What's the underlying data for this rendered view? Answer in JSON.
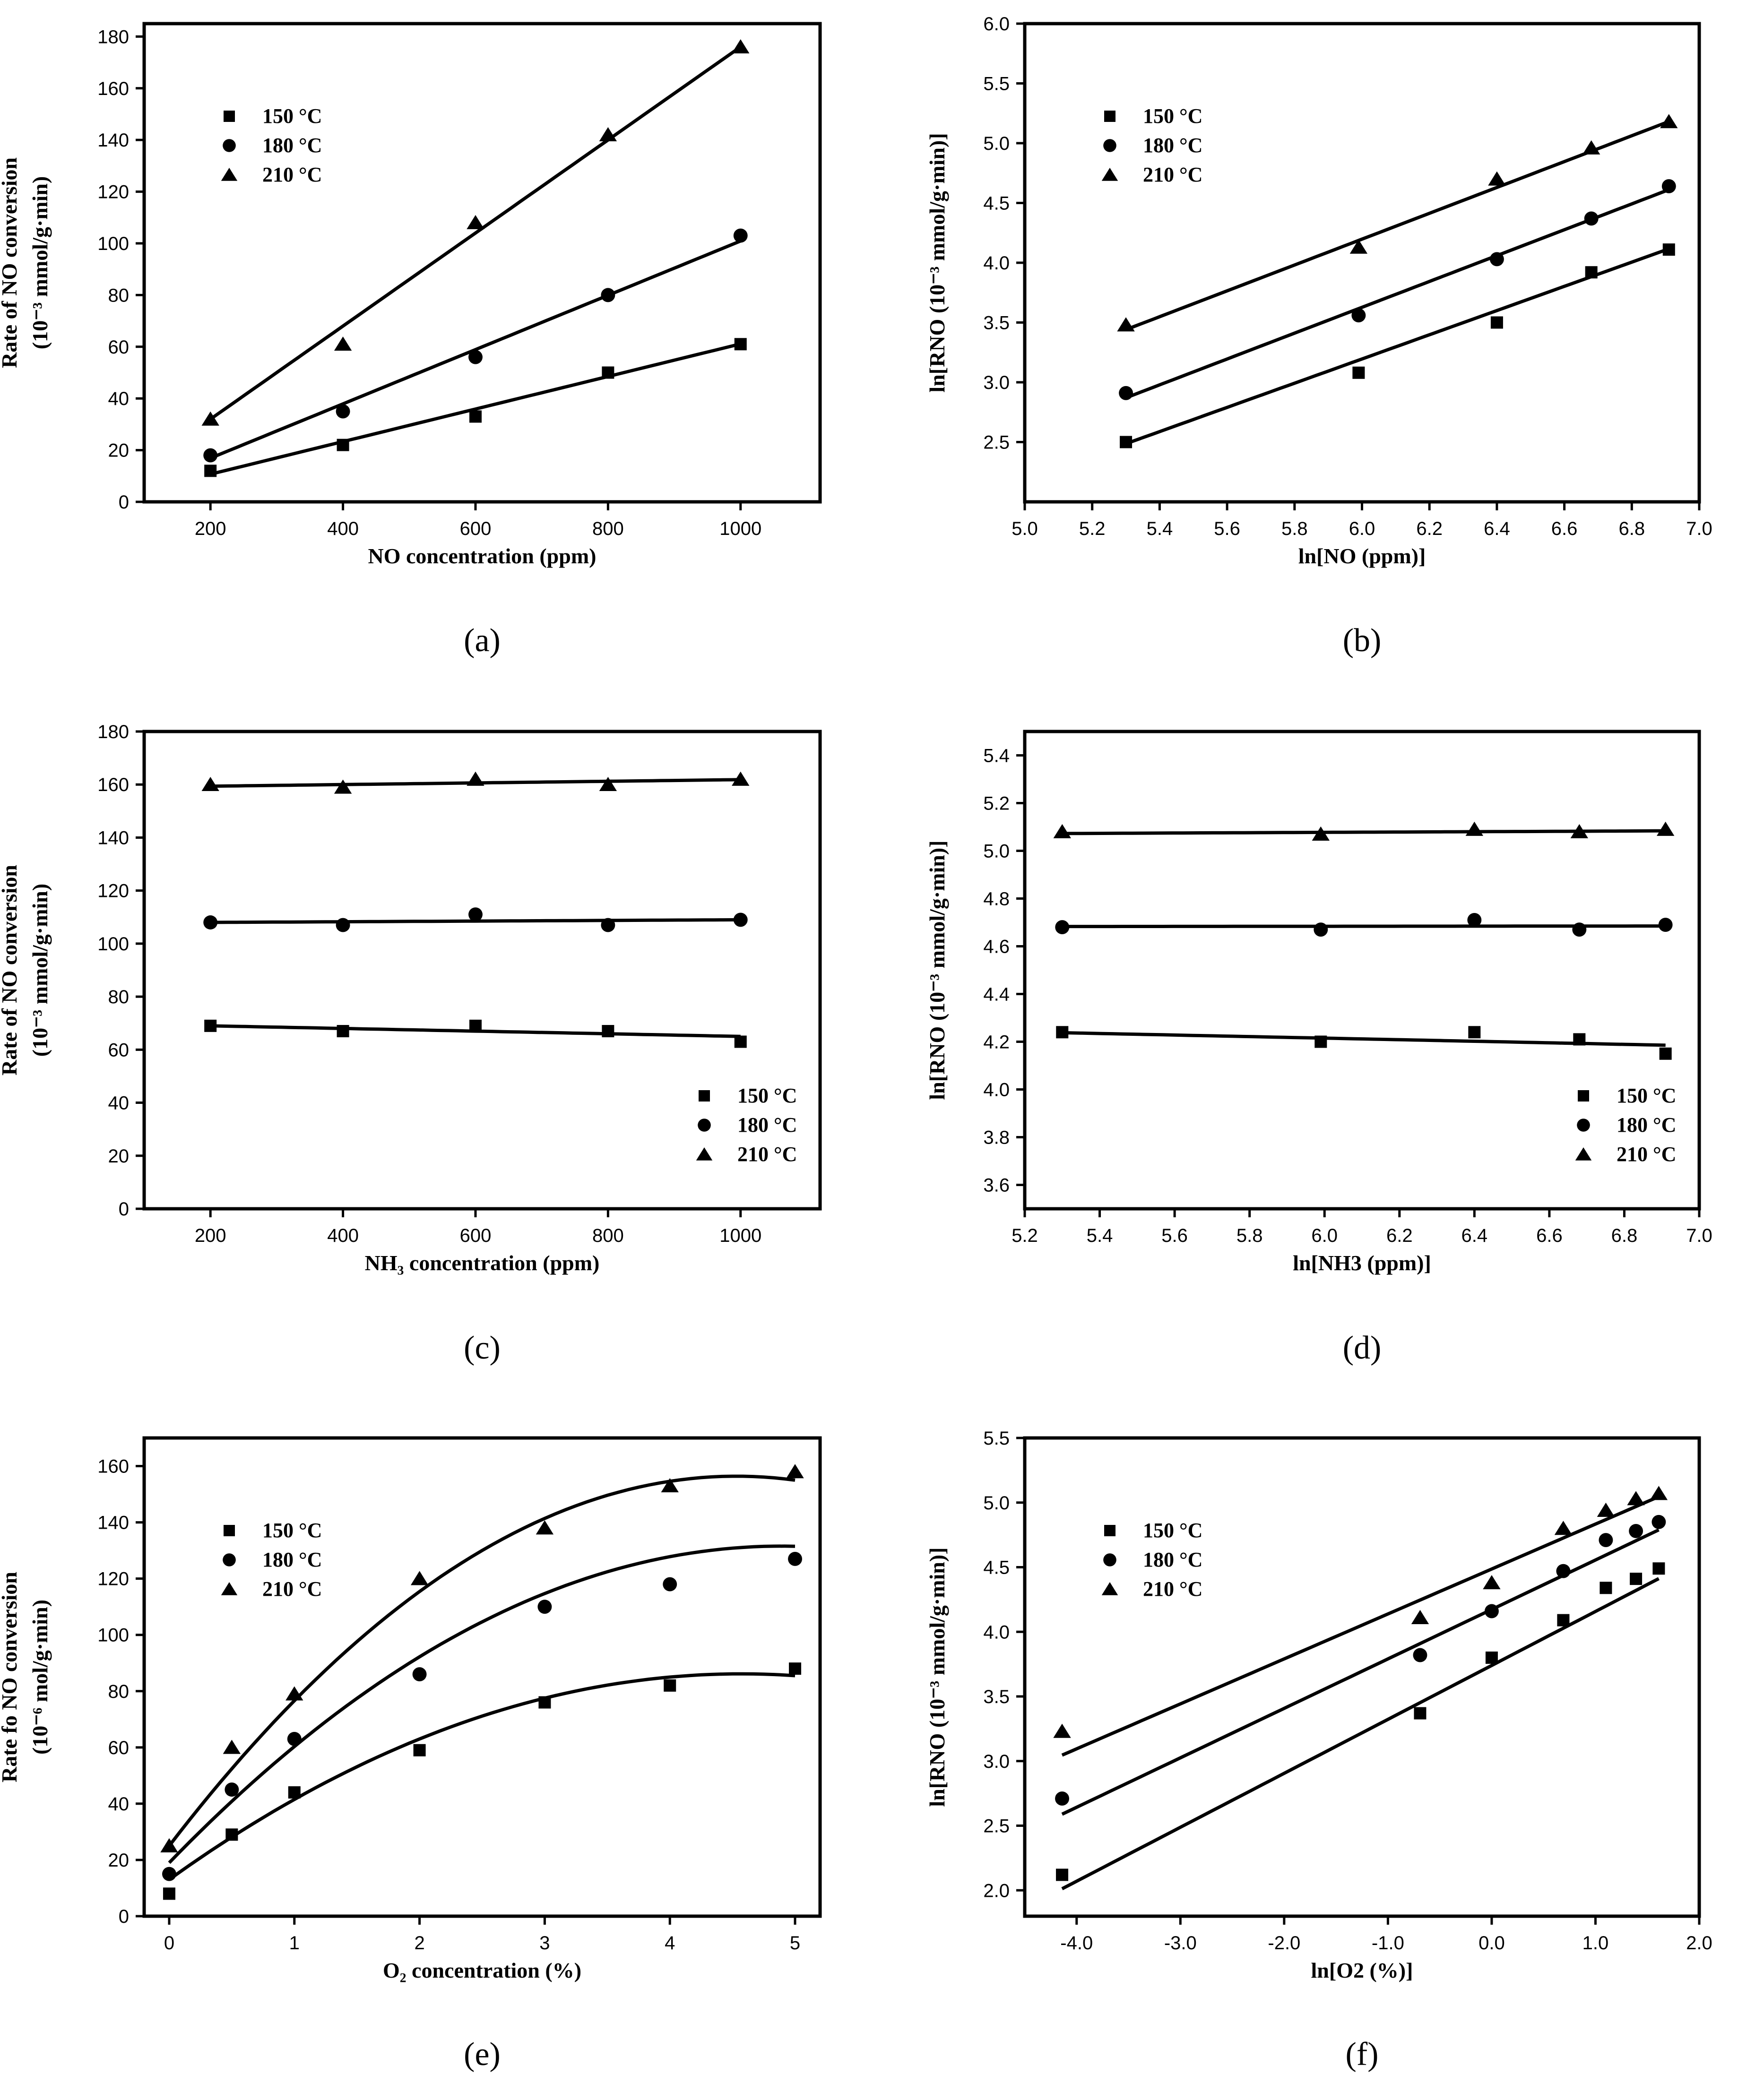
{
  "chart_data": [
    {
      "id": "a",
      "type": "scatter",
      "panel_label": "(a)",
      "xlabel": "NO concentration (ppm)",
      "ylabel_line1": "Rate of NO conversion",
      "ylabel_line2": "(10⁻³ mmol/g·min)",
      "xlim": [
        100,
        1120
      ],
      "ylim": [
        0,
        185
      ],
      "xticks": [
        200,
        400,
        600,
        800,
        1000
      ],
      "yticks": [
        0,
        20,
        40,
        60,
        80,
        100,
        120,
        140,
        160,
        180
      ],
      "tick_decimals": 0,
      "legend_position": "top-left",
      "series": [
        {
          "name": "150 °C",
          "marker": "square",
          "x": [
            200,
            400,
            600,
            800,
            1000
          ],
          "y": [
            12,
            22,
            33,
            50,
            61
          ],
          "fit": {
            "kind": "poly",
            "coef": [
              -1.9,
              0.063
            ],
            "x_range": [
              200,
              1000
            ]
          }
        },
        {
          "name": "180 °C",
          "marker": "circle",
          "x": [
            200,
            400,
            600,
            800,
            1000
          ],
          "y": [
            18,
            35,
            56,
            80,
            103
          ],
          "fit": {
            "kind": "poly",
            "coef": [
              -4.1,
              0.105
            ],
            "x_range": [
              200,
              1000
            ]
          }
        },
        {
          "name": "210 °C",
          "marker": "triangle",
          "x": [
            200,
            400,
            600,
            800,
            1000
          ],
          "y": [
            32,
            61,
            108,
            142,
            176
          ],
          "fit": {
            "kind": "poly",
            "coef": [
              -4.0,
              0.18
            ],
            "x_range": [
              200,
              1000
            ]
          }
        }
      ]
    },
    {
      "id": "b",
      "type": "scatter",
      "panel_label": "(b)",
      "xlabel": "ln[NO (ppm)]",
      "ylabel_line1": "ln[RNO (10⁻³ mmol/g·min)]",
      "ylabel_line2": "",
      "xlim": [
        5.0,
        7.0
      ],
      "ylim": [
        2.0,
        6.0
      ],
      "xticks": [
        5.0,
        5.2,
        5.4,
        5.6,
        5.8,
        6.0,
        6.2,
        6.4,
        6.6,
        6.8,
        7.0
      ],
      "yticks": [
        2.5,
        3.0,
        3.5,
        4.0,
        4.5,
        5.0,
        5.5,
        6.0
      ],
      "tick_decimals": 1,
      "legend_position": "top-left",
      "series": [
        {
          "name": "150 °C",
          "marker": "square",
          "x": [
            5.3,
            5.99,
            6.4,
            6.68,
            6.91
          ],
          "y": [
            2.5,
            3.08,
            3.5,
            3.92,
            4.11
          ],
          "fit": {
            "kind": "poly",
            "coef": [
              -2.88,
              1.0125
            ],
            "x_range": [
              5.3,
              6.91
            ]
          }
        },
        {
          "name": "180 °C",
          "marker": "circle",
          "x": [
            5.3,
            5.99,
            6.4,
            6.68,
            6.91
          ],
          "y": [
            2.91,
            3.56,
            4.03,
            4.37,
            4.64
          ],
          "fit": {
            "kind": "poly",
            "coef": [
              -2.86,
              1.0812
            ],
            "x_range": [
              5.3,
              6.91
            ]
          }
        },
        {
          "name": "210 °C",
          "marker": "triangle",
          "x": [
            5.3,
            5.99,
            6.4,
            6.68,
            6.91
          ],
          "y": [
            3.48,
            4.13,
            4.7,
            4.96,
            5.18
          ],
          "fit": {
            "kind": "poly",
            "coef": [
              -2.29,
              1.0812
            ],
            "x_range": [
              5.3,
              6.91
            ]
          }
        }
      ]
    },
    {
      "id": "c",
      "type": "scatter",
      "panel_label": "(c)",
      "xlabel": "NH₃ concentration (ppm)",
      "ylabel_line1": "Rate of NO conversion",
      "ylabel_line2": "(10⁻³ mmol/g·min)",
      "xlim": [
        100,
        1120
      ],
      "ylim": [
        0,
        180
      ],
      "xticks": [
        200,
        400,
        600,
        800,
        1000
      ],
      "yticks": [
        0,
        20,
        40,
        60,
        80,
        100,
        120,
        140,
        160,
        180
      ],
      "tick_decimals": 0,
      "legend_position": "bottom-right",
      "series": [
        {
          "name": "150 °C",
          "marker": "square",
          "x": [
            200,
            400,
            600,
            800,
            1000
          ],
          "y": [
            69,
            67,
            69,
            67,
            63
          ],
          "fit": {
            "kind": "poly",
            "coef": [
              70.0,
              -0.005
            ],
            "x_range": [
              200,
              1000
            ]
          }
        },
        {
          "name": "180 °C",
          "marker": "circle",
          "x": [
            200,
            400,
            600,
            800,
            1000
          ],
          "y": [
            108,
            107,
            111,
            107,
            109
          ],
          "fit": {
            "kind": "poly",
            "coef": [
              107.75,
              0.00125
            ],
            "x_range": [
              200,
              1000
            ]
          }
        },
        {
          "name": "210 °C",
          "marker": "triangle",
          "x": [
            200,
            400,
            600,
            800,
            1000
          ],
          "y": [
            160,
            159,
            162,
            160,
            162
          ],
          "fit": {
            "kind": "poly",
            "coef": [
              158.75,
              0.0031
            ],
            "x_range": [
              200,
              1000
            ]
          }
        }
      ]
    },
    {
      "id": "d",
      "type": "scatter",
      "panel_label": "(d)",
      "xlabel": "ln[NH3 (ppm)]",
      "ylabel_line1": "ln[RNO (10⁻³ mmol/g·min)]",
      "ylabel_line2": "",
      "xlim": [
        5.2,
        7.0
      ],
      "ylim": [
        3.5,
        5.5
      ],
      "xticks": [
        5.2,
        5.4,
        5.6,
        5.8,
        6.0,
        6.2,
        6.4,
        6.6,
        6.8,
        7.0
      ],
      "yticks": [
        3.6,
        3.8,
        4.0,
        4.2,
        4.4,
        4.6,
        4.8,
        5.0,
        5.2,
        5.4
      ],
      "tick_decimals": 1,
      "legend_position": "bottom-right",
      "series": [
        {
          "name": "150 °C",
          "marker": "square",
          "x": [
            5.3,
            5.99,
            6.4,
            6.68,
            6.91
          ],
          "y": [
            4.24,
            4.2,
            4.24,
            4.21,
            4.15
          ],
          "fit": {
            "kind": "poly",
            "coef": [
              4.41,
              -0.0325
            ],
            "x_range": [
              5.3,
              6.91
            ]
          }
        },
        {
          "name": "180 °C",
          "marker": "circle",
          "x": [
            5.3,
            5.99,
            6.4,
            6.68,
            6.91
          ],
          "y": [
            4.68,
            4.67,
            4.71,
            4.67,
            4.69
          ],
          "fit": {
            "kind": "poly",
            "coef": [
              4.676,
              0.0013
            ],
            "x_range": [
              5.3,
              6.91
            ]
          }
        },
        {
          "name": "210 °C",
          "marker": "triangle",
          "x": [
            5.3,
            5.99,
            6.4,
            6.68,
            6.91
          ],
          "y": [
            5.08,
            5.07,
            5.09,
            5.08,
            5.09
          ],
          "fit": {
            "kind": "poly",
            "coef": [
              5.036,
              0.0069
            ],
            "x_range": [
              5.3,
              6.91
            ]
          }
        }
      ]
    },
    {
      "id": "e",
      "type": "scatter",
      "panel_label": "(e)",
      "xlabel": "O₂ concentration (%)",
      "ylabel_line1": "Rate fo NO conversion",
      "ylabel_line2": "(10⁻⁶ mol/g·min)",
      "xlim": [
        -0.2,
        5.2
      ],
      "ylim": [
        0,
        170
      ],
      "xticks": [
        0,
        1,
        2,
        3,
        4,
        5
      ],
      "yticks": [
        0,
        20,
        40,
        60,
        80,
        100,
        120,
        140,
        160
      ],
      "tick_decimals": 0,
      "legend_position": "top-left",
      "series": [
        {
          "name": "150 °C",
          "marker": "square",
          "x": [
            0,
            0.5,
            1,
            2,
            3,
            4,
            5
          ],
          "y": [
            8,
            29,
            44,
            59,
            76,
            82,
            88
          ],
          "fit": {
            "kind": "poly",
            "coef": [
              13,
              32,
              -3.5
            ],
            "x_range": [
              0,
              5
            ]
          }
        },
        {
          "name": "180 °C",
          "marker": "circle",
          "x": [
            0,
            0.5,
            1,
            2,
            3,
            4,
            5
          ],
          "y": [
            15,
            45,
            63,
            86,
            110,
            118,
            127
          ],
          "fit": {
            "kind": "poly",
            "coef": [
              19,
              46,
              -4.7
            ],
            "x_range": [
              0,
              5
            ]
          }
        },
        {
          "name": "210 °C",
          "marker": "triangle",
          "x": [
            0,
            0.5,
            1,
            2,
            3,
            4,
            5
          ],
          "y": [
            25,
            60,
            79,
            120,
            138,
            153,
            158
          ],
          "fit": {
            "kind": "poly",
            "coef": [
              25,
              58,
              -6.4
            ],
            "x_range": [
              0,
              5
            ]
          }
        }
      ]
    },
    {
      "id": "f",
      "type": "scatter",
      "panel_label": "(f)",
      "xlabel": "ln[O2 (%)]",
      "ylabel_line1": "ln[RNO (10⁻³ mmol/g·min)]",
      "ylabel_line2": "",
      "xlim": [
        -4.5,
        2.0
      ],
      "ylim": [
        1.8,
        5.5
      ],
      "xticks": [
        -4,
        -3,
        -2,
        -1,
        0,
        1,
        2
      ],
      "yticks": [
        2.0,
        2.5,
        3.0,
        3.5,
        4.0,
        4.5,
        5.0,
        5.5
      ],
      "tick_decimals": 1,
      "legend_position": "top-left",
      "series": [
        {
          "name": "150 °C",
          "marker": "square",
          "x": [
            -4.14,
            -0.69,
            0,
            0.69,
            1.1,
            1.39,
            1.61
          ],
          "y": [
            2.12,
            3.37,
            3.8,
            4.09,
            4.34,
            4.41,
            4.49
          ],
          "fit": {
            "kind": "poly",
            "coef": [
              3.74,
              0.4174
            ],
            "x_range": [
              -4.14,
              1.61
            ]
          }
        },
        {
          "name": "180 °C",
          "marker": "circle",
          "x": [
            -4.14,
            -0.69,
            0,
            0.69,
            1.1,
            1.39,
            1.61
          ],
          "y": [
            2.71,
            3.82,
            4.16,
            4.47,
            4.71,
            4.78,
            4.85
          ],
          "fit": {
            "kind": "poly",
            "coef": [
              4.173,
              0.3826
            ],
            "x_range": [
              -4.14,
              1.61
            ]
          }
        },
        {
          "name": "210 °C",
          "marker": "triangle",
          "x": [
            -4.14,
            -0.69,
            0,
            0.69,
            1.1,
            1.39,
            1.61
          ],
          "y": [
            3.23,
            4.11,
            4.38,
            4.8,
            4.94,
            5.03,
            5.07
          ],
          "fit": {
            "kind": "poly",
            "coef": [
              4.486,
              0.3478
            ],
            "x_range": [
              -4.14,
              1.61
            ]
          }
        }
      ]
    }
  ]
}
